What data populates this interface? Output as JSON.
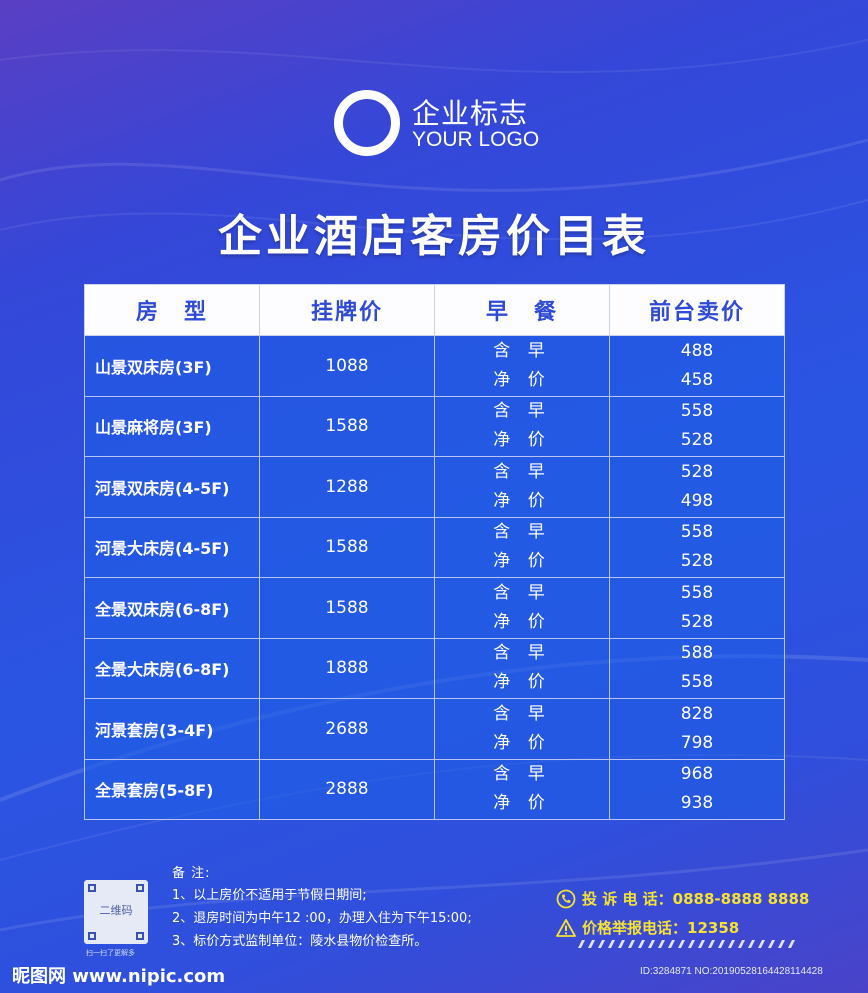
{
  "logo": {
    "name_cn": "企业标志",
    "name_en": "YOUR LOGO"
  },
  "title": "企业酒店客房价目表",
  "table": {
    "headers": [
      "房　型",
      "挂牌价",
      "早　餐",
      "前台卖价"
    ],
    "rows": [
      {
        "room": "山景双床房(3F)",
        "list_price": "1088",
        "with_breakfast": "含 早",
        "no_breakfast": "净 价",
        "price_with": "488",
        "price_net": "458"
      },
      {
        "room": "山景麻将房(3F)",
        "list_price": "1588",
        "with_breakfast": "含 早",
        "no_breakfast": "净 价",
        "price_with": "558",
        "price_net": "528"
      },
      {
        "room": "河景双床房(4-5F)",
        "list_price": "1288",
        "with_breakfast": "含 早",
        "no_breakfast": "净 价",
        "price_with": "528",
        "price_net": "498"
      },
      {
        "room": "河景大床房(4-5F)",
        "list_price": "1588",
        "with_breakfast": "含 早",
        "no_breakfast": "净 价",
        "price_with": "558",
        "price_net": "528"
      },
      {
        "room": "全景双床房(6-8F)",
        "list_price": "1588",
        "with_breakfast": "含 早",
        "no_breakfast": "净 价",
        "price_with": "558",
        "price_net": "528"
      },
      {
        "room": "全景大床房(6-8F)",
        "list_price": "1888",
        "with_breakfast": "含 早",
        "no_breakfast": "净 价",
        "price_with": "588",
        "price_net": "558"
      },
      {
        "room": "河景套房(3-4F)",
        "list_price": "2688",
        "with_breakfast": "含 早",
        "no_breakfast": "净 价",
        "price_with": "828",
        "price_net": "798"
      },
      {
        "room": "全景套房(5-8F)",
        "list_price": "2888",
        "with_breakfast": "含 早",
        "no_breakfast": "净 价",
        "price_with": "968",
        "price_net": "938"
      }
    ]
  },
  "qr": {
    "label": "二维码",
    "caption": "扫一扫了更解多"
  },
  "notes": {
    "title": "备  注:",
    "items": [
      "1、以上房价不适用于节假日期间;",
      "2、退房时间为中午12 :00，办理入住为下午15:00;",
      "3、标价方式监制单位：陵水县物价检查所。"
    ]
  },
  "contact": {
    "complaint_label": "投 诉 电 话：",
    "complaint_number": "0888-8888 8888",
    "report_label": "价格举报电话：",
    "report_number": "12358",
    "icon_phone": "phone-icon",
    "icon_warning": "warning-icon",
    "accent_color": "#f5e233"
  },
  "watermark": {
    "left": "昵图网 www.nipic.com",
    "right": "ID:3284871 NO:20190528164428114428"
  },
  "colors": {
    "background": "#2a55e3",
    "header_text": "#2f4bd6"
  }
}
